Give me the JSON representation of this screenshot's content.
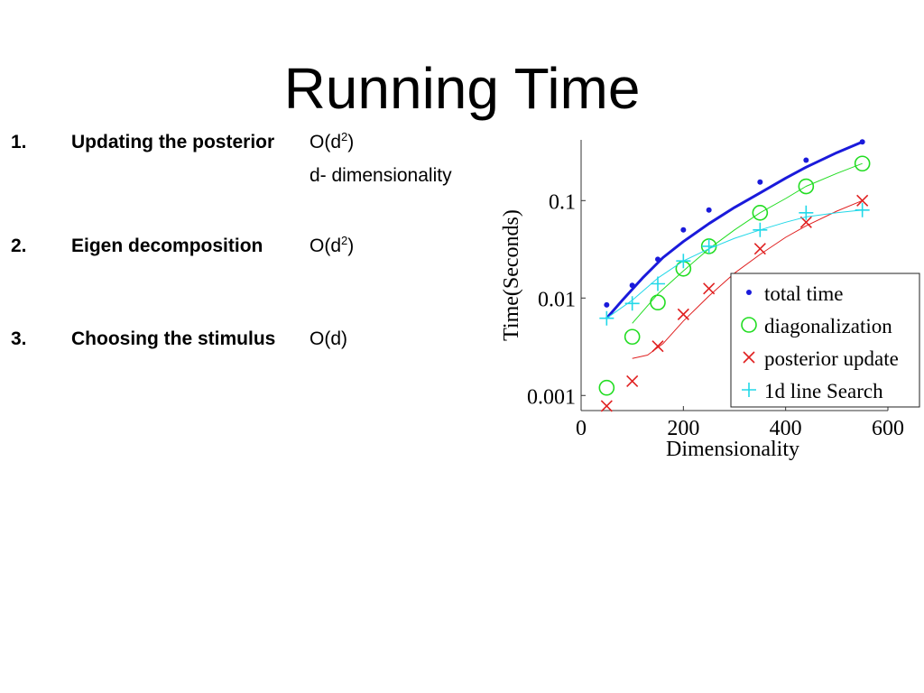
{
  "slide": {
    "title": "Running Time",
    "items": [
      {
        "number": "1.",
        "label": "Updating the posterior",
        "complexity_base": "O(d",
        "complexity_exp": "2",
        "complexity_close": ")",
        "note": "d- dimensionality"
      },
      {
        "number": "2.",
        "label": "Eigen decomposition",
        "complexity_base": "O(d",
        "complexity_exp": "2",
        "complexity_close": ")"
      },
      {
        "number": "3.",
        "label": "Choosing the stimulus",
        "complexity_base": "O(d",
        "complexity_exp": "",
        "complexity_close": ")"
      }
    ]
  },
  "chart_data": {
    "type": "scatter",
    "xlabel": "Dimensionality",
    "ylabel": "Time(Seconds)",
    "xlim": [
      0,
      600
    ],
    "ylim": [
      0.0007,
      0.42
    ],
    "yscale": "log",
    "grid": false,
    "legend_position": "bottom-right",
    "xticks": [
      {
        "value": 0,
        "label": "0"
      },
      {
        "value": 200,
        "label": "200"
      },
      {
        "value": 400,
        "label": "400"
      },
      {
        "value": 600,
        "label": "600"
      }
    ],
    "yticks": [
      {
        "value": 0.001,
        "label": "0.001"
      },
      {
        "value": 0.01,
        "label": "0.01"
      },
      {
        "value": 0.1,
        "label": "0.1"
      }
    ],
    "series": [
      {
        "name": "total time",
        "marker": "dot",
        "color": "#1a1adb",
        "line_width": 3,
        "x": [
          50,
          100,
          150,
          200,
          250,
          350,
          440,
          550
        ],
        "y": [
          0.0085,
          0.0135,
          0.025,
          0.05,
          0.08,
          0.155,
          0.26,
          0.4
        ],
        "fit_x": [
          50,
          80,
          120,
          160,
          200,
          250,
          300,
          350,
          400,
          440,
          500,
          550
        ],
        "fit_y": [
          0.0062,
          0.0094,
          0.016,
          0.026,
          0.038,
          0.058,
          0.085,
          0.12,
          0.17,
          0.22,
          0.31,
          0.4
        ]
      },
      {
        "name": "diagonalization",
        "marker": "circle",
        "color": "#22dd22",
        "line_width": 1,
        "x": [
          50,
          100,
          150,
          200,
          250,
          350,
          440,
          550
        ],
        "y": [
          0.0012,
          0.004,
          0.009,
          0.02,
          0.034,
          0.075,
          0.14,
          0.24
        ],
        "fit_x": [
          100,
          150,
          200,
          250,
          300,
          350,
          400,
          440,
          500,
          550
        ],
        "fit_y": [
          0.0055,
          0.011,
          0.019,
          0.032,
          0.05,
          0.075,
          0.105,
          0.14,
          0.19,
          0.24
        ]
      },
      {
        "name": "posterior update",
        "marker": "x",
        "color": "#e02020",
        "line_width": 1,
        "x": [
          50,
          100,
          150,
          200,
          250,
          350,
          440,
          550
        ],
        "y": [
          0.00078,
          0.0014,
          0.0032,
          0.0068,
          0.0125,
          0.032,
          0.06,
          0.1
        ],
        "fit_x": [
          100,
          130,
          160,
          200,
          250,
          300,
          350,
          400,
          440,
          500,
          550
        ],
        "fit_y": [
          0.0024,
          0.0026,
          0.0034,
          0.0058,
          0.0105,
          0.018,
          0.028,
          0.042,
          0.055,
          0.078,
          0.1
        ]
      },
      {
        "name": "1d line Search",
        "marker": "plus",
        "color": "#22d8e8",
        "line_width": 1,
        "x": [
          50,
          100,
          150,
          200,
          250,
          350,
          440,
          550
        ],
        "y": [
          0.0062,
          0.0088,
          0.014,
          0.024,
          0.034,
          0.05,
          0.075,
          0.08
        ],
        "fit_x": [
          50,
          100,
          150,
          200,
          250,
          300,
          350,
          400,
          440,
          500,
          550
        ],
        "fit_y": [
          0.0062,
          0.0095,
          0.016,
          0.024,
          0.032,
          0.041,
          0.05,
          0.06,
          0.068,
          0.075,
          0.08
        ]
      }
    ]
  }
}
